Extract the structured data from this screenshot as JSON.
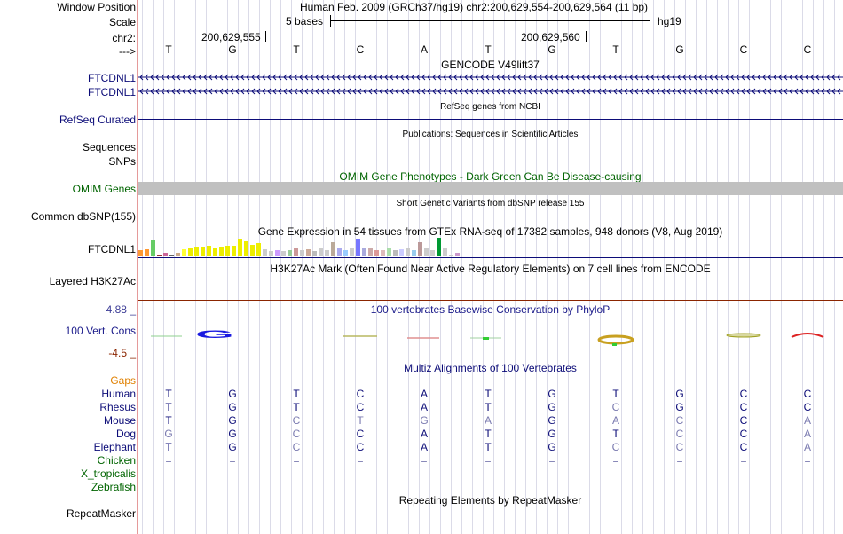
{
  "header": {
    "window_position_label": "Window Position",
    "window_position_value": "Human Feb. 2009 (GRCh37/hg19)   chr2:200,629,554-200,629,564 (11 bp)",
    "scale_label": "Scale",
    "scale_value": "5 bases",
    "assembly": "hg19",
    "chrom_label": "chr2:",
    "pos1": "200,629,555",
    "pos2": "200,629,560",
    "strand_label": "--->"
  },
  "reference_bases": [
    "T",
    "G",
    "T",
    "C",
    "A",
    "T",
    "G",
    "T",
    "G",
    "C",
    "C"
  ],
  "tracks": {
    "gencode": {
      "title": "GENCODE V49lift37",
      "items": [
        "FTCDNL1",
        "FTCDNL1"
      ]
    },
    "refseq": {
      "title": "RefSeq genes from NCBI",
      "label": "RefSeq Curated"
    },
    "publications": {
      "title": "Publications: Sequences in Scientific Articles",
      "label1": "Sequences",
      "label2": "SNPs"
    },
    "omim": {
      "title": "OMIM Gene Phenotypes - Dark Green Can Be Disease-causing",
      "label": "OMIM Genes"
    },
    "dbsnp": {
      "title": "Short Genetic Variants from dbSNP release 155",
      "label": "Common dbSNP(155)"
    },
    "gtex": {
      "title": "Gene Expression in 54 tissues from GTEx RNA-seq of 17382 samples, 948 donors (V8, Aug 2019)",
      "label": "FTCDNL1",
      "bars": [
        {
          "v": 0.35,
          "c": "#ff9933"
        },
        {
          "v": 0.4,
          "c": "#ff9933"
        },
        {
          "v": 0.9,
          "c": "#66cc66"
        },
        {
          "v": 0.1,
          "c": "#993333"
        },
        {
          "v": 0.2,
          "c": "#cc6699"
        },
        {
          "v": 0.1,
          "c": "#666666"
        },
        {
          "v": 0.2,
          "c": "#ccaa88"
        },
        {
          "v": 0.4,
          "c": "#ffff33"
        },
        {
          "v": 0.45,
          "c": "#eeee00"
        },
        {
          "v": 0.5,
          "c": "#eeee00"
        },
        {
          "v": 0.5,
          "c": "#eeee00"
        },
        {
          "v": 0.55,
          "c": "#eeee00"
        },
        {
          "v": 0.45,
          "c": "#eeee00"
        },
        {
          "v": 0.5,
          "c": "#eeee00"
        },
        {
          "v": 0.55,
          "c": "#eeee00"
        },
        {
          "v": 0.55,
          "c": "#eeee00"
        },
        {
          "v": 0.95,
          "c": "#eeee00"
        },
        {
          "v": 0.8,
          "c": "#eeee00"
        },
        {
          "v": 0.6,
          "c": "#eeee00"
        },
        {
          "v": 0.7,
          "c": "#eeee00"
        },
        {
          "v": 0.4,
          "c": "#cccccc"
        },
        {
          "v": 0.3,
          "c": "#cccccc"
        },
        {
          "v": 0.35,
          "c": "#cc99ff"
        },
        {
          "v": 0.3,
          "c": "#cccccc"
        },
        {
          "v": 0.35,
          "c": "#99cc99"
        },
        {
          "v": 0.45,
          "c": "#cc9999"
        },
        {
          "v": 0.35,
          "c": "#cccccc"
        },
        {
          "v": 0.4,
          "c": "#ccaa99"
        },
        {
          "v": 0.3,
          "c": "#bbbbbb"
        },
        {
          "v": 0.45,
          "c": "#cccccc"
        },
        {
          "v": 0.35,
          "c": "#cccccc"
        },
        {
          "v": 0.75,
          "c": "#bbaa99"
        },
        {
          "v": 0.45,
          "c": "#aaaaee"
        },
        {
          "v": 0.35,
          "c": "#99ccff"
        },
        {
          "v": 0.45,
          "c": "#cccccc"
        },
        {
          "v": 0.95,
          "c": "#7777ff"
        },
        {
          "v": 0.45,
          "c": "#aaaadd"
        },
        {
          "v": 0.45,
          "c": "#ccaaaa"
        },
        {
          "v": 0.35,
          "c": "#dd9999"
        },
        {
          "v": 0.35,
          "c": "#ddbbbb"
        },
        {
          "v": 0.45,
          "c": "#aaddaa"
        },
        {
          "v": 0.35,
          "c": "#bbbbbb"
        },
        {
          "v": 0.4,
          "c": "#ccccff"
        },
        {
          "v": 0.45,
          "c": "#cccccc"
        },
        {
          "v": 0.35,
          "c": "#99ccee"
        },
        {
          "v": 0.75,
          "c": "#bb9999"
        },
        {
          "v": 0.45,
          "c": "#cccccc"
        },
        {
          "v": 0.35,
          "c": "#cccccc"
        },
        {
          "v": 1.0,
          "c": "#009933"
        },
        {
          "v": 0.45,
          "c": "#cccccc"
        },
        {
          "v": 0.1,
          "c": "#cccccc"
        },
        {
          "v": 0.2,
          "c": "#cc99cc"
        }
      ]
    },
    "h3k27ac": {
      "title": "H3K27Ac Mark (Often Found Near Active Regulatory Elements) on 7 cell lines from ENCODE",
      "label": "Layered H3K27Ac"
    },
    "phylop": {
      "title": "100 vertebrates Basewise Conservation by PhyloP",
      "label": "100 Vert. Cons",
      "ymax": "4.88 _",
      "ymin": "-4.5 _"
    },
    "multiz": {
      "title": "Multiz Alignments of 100 Vertebrates",
      "gaps_label": "Gaps",
      "species": [
        {
          "name": "Human",
          "bases": [
            "T",
            "G",
            "T",
            "C",
            "A",
            "T",
            "G",
            "T",
            "G",
            "C",
            "C"
          ],
          "dim": [
            0,
            0,
            0,
            0,
            0,
            0,
            0,
            0,
            0,
            0,
            0
          ]
        },
        {
          "name": "Rhesus",
          "bases": [
            "T",
            "G",
            "T",
            "C",
            "A",
            "T",
            "G",
            "C",
            "G",
            "C",
            "C"
          ],
          "dim": [
            0,
            0,
            0,
            0,
            0,
            0,
            0,
            1,
            0,
            0,
            0
          ]
        },
        {
          "name": "Mouse",
          "bases": [
            "T",
            "G",
            "C",
            "T",
            "G",
            "A",
            "G",
            "A",
            "C",
            "C",
            "A"
          ],
          "dim": [
            0,
            0,
            1,
            1,
            1,
            1,
            0,
            1,
            1,
            0,
            1
          ]
        },
        {
          "name": "Dog",
          "bases": [
            "G",
            "G",
            "C",
            "C",
            "A",
            "T",
            "G",
            "T",
            "C",
            "C",
            "A"
          ],
          "dim": [
            1,
            0,
            1,
            0,
            0,
            0,
            0,
            0,
            1,
            0,
            1
          ]
        },
        {
          "name": "Elephant",
          "bases": [
            "T",
            "G",
            "C",
            "C",
            "A",
            "T",
            "G",
            "C",
            "C",
            "C",
            "A"
          ],
          "dim": [
            0,
            0,
            1,
            0,
            0,
            0,
            0,
            1,
            1,
            0,
            1
          ]
        },
        {
          "name": "Chicken",
          "bases": [
            "=",
            "=",
            "=",
            "=",
            "=",
            "=",
            "=",
            "=",
            "=",
            "=",
            "="
          ],
          "dim": [
            1,
            1,
            1,
            1,
            1,
            1,
            1,
            1,
            1,
            1,
            1
          ]
        },
        {
          "name": "X_tropicalis",
          "bases": [
            "",
            "",
            "",
            "",
            "",
            "",
            "",
            "",
            "",
            "",
            ""
          ],
          "dim": [
            0,
            0,
            0,
            0,
            0,
            0,
            0,
            0,
            0,
            0,
            0
          ]
        },
        {
          "name": "Zebrafish",
          "bases": [
            "",
            "",
            "",
            "",
            "",
            "",
            "",
            "",
            "",
            "",
            ""
          ],
          "dim": [
            0,
            0,
            0,
            0,
            0,
            0,
            0,
            0,
            0,
            0,
            0
          ]
        }
      ]
    },
    "repeatmasker": {
      "title": "Repeating Elements by RepeatMasker",
      "label": "RepeatMasker"
    }
  },
  "colors": {
    "gene": "#0c0c78",
    "omim": "#006400",
    "phylop_label": "#1a1a8a",
    "phylop_max": "#3c3c96",
    "phylop_min": "#8b2500",
    "gaps": "#e08000",
    "species": "#0c0c78",
    "species_other": "#006400",
    "dim": "#7a7ab0"
  }
}
